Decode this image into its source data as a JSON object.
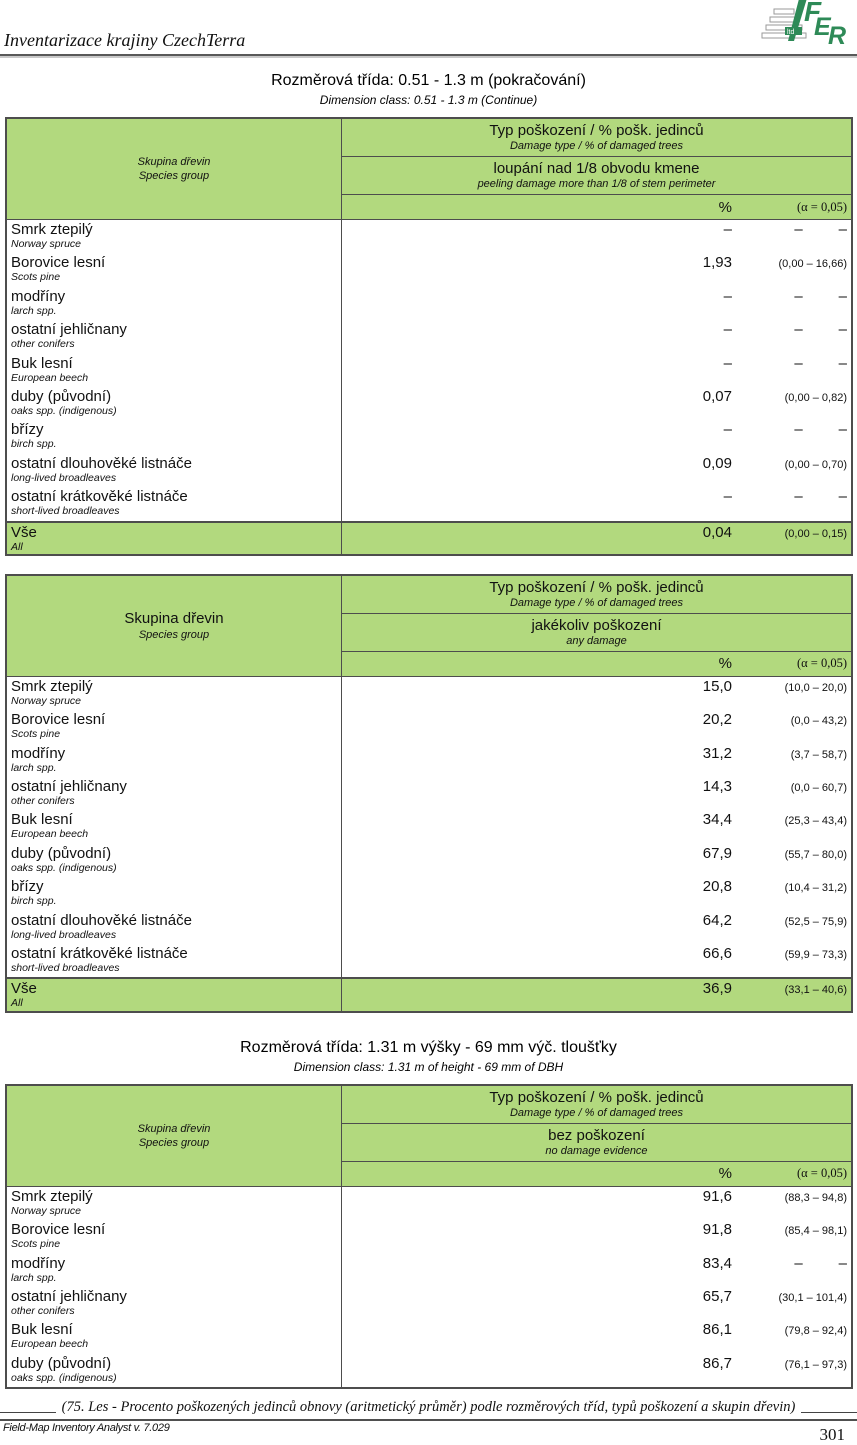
{
  "colors": {
    "table_green": "#b2d97e",
    "logo_green": "#2e8a57",
    "border_dark": "#4d4d4d"
  },
  "page": {
    "header_title": "Inventarizace krajiny CzechTerra",
    "logo": {
      "letters": {
        "f": "F",
        "e": "E",
        "r": "R"
      },
      "ltd": "ltd"
    },
    "caption": "(75. Les - Procento poškozených jedinců obnovy (aritmetický průměr) podle rozměrových tříd, typů poškození a skupin dřevin)",
    "footer_app": "Field-Map Inventory Analyst v. 7.029",
    "page_number": "301"
  },
  "sections": [
    {
      "title": "Rozměrová třída: 0.51 - 1.3 m (pokračování)",
      "subtitle": "Dimension class: 0.51 - 1.3 m (Continue)",
      "table": {
        "species_large": false,
        "species": {
          "cs": "Skupina dřevin",
          "en": "Species group"
        },
        "damage_header": {
          "cs": "Typ poškození / % pošk. jedinců",
          "en": "Damage type / % of damaged trees"
        },
        "damage_type": {
          "cs": "loupání nad 1/8 obvodu kmene",
          "en": "peeling damage more than 1/8 of stem perimeter"
        },
        "unit": "%",
        "alpha": "(α = 0,05)",
        "rows": [
          {
            "cs": "Smrk ztepilý",
            "en": "Norway spruce",
            "pct": "–",
            "ci": null
          },
          {
            "cs": "Borovice lesní",
            "en": "Scots pine",
            "pct": "1,93",
            "ci": "(0,00 – 16,66)"
          },
          {
            "cs": "modříny",
            "en": "larch spp.",
            "pct": "–",
            "ci": null
          },
          {
            "cs": "ostatní jehličnany",
            "en": "other conifers",
            "pct": "–",
            "ci": null
          },
          {
            "cs": "Buk lesní",
            "en": "European beech",
            "pct": "–",
            "ci": null
          },
          {
            "cs": "duby (původní)",
            "en": "oaks spp. (indigenous)",
            "pct": "0,07",
            "ci": "(0,00 – 0,82)"
          },
          {
            "cs": "břízy",
            "en": "birch spp.",
            "pct": "–",
            "ci": null
          },
          {
            "cs": "ostatní dlouhověké listnáče",
            "en": "long-lived broadleaves",
            "pct": "0,09",
            "ci": "(0,00 – 0,70)"
          },
          {
            "cs": "ostatní krátkověké listnáče",
            "en": "short-lived broadleaves",
            "pct": "–",
            "ci": null
          },
          {
            "cs": "Vše",
            "en": "All",
            "pct": "0,04",
            "ci": "(0,00 – 0,15)",
            "total": true
          }
        ]
      }
    },
    {
      "title": null,
      "subtitle": null,
      "table": {
        "species_large": true,
        "species": {
          "cs": "Skupina dřevin",
          "en": "Species group"
        },
        "damage_header": {
          "cs": "Typ poškození / % pošk. jedinců",
          "en": "Damage type / % of damaged trees"
        },
        "damage_type": {
          "cs": "jakékoliv poškození",
          "en": "any damage"
        },
        "unit": "%",
        "alpha": "(α = 0,05)",
        "rows": [
          {
            "cs": "Smrk ztepilý",
            "en": "Norway spruce",
            "pct": "15,0",
            "ci": "(10,0 – 20,0)"
          },
          {
            "cs": "Borovice lesní",
            "en": "Scots pine",
            "pct": "20,2",
            "ci": "(0,0 – 43,2)"
          },
          {
            "cs": "modříny",
            "en": "larch spp.",
            "pct": "31,2",
            "ci": "(3,7 – 58,7)"
          },
          {
            "cs": "ostatní jehličnany",
            "en": "other conifers",
            "pct": "14,3",
            "ci": "(0,0 – 60,7)"
          },
          {
            "cs": "Buk lesní",
            "en": "European beech",
            "pct": "34,4",
            "ci": "(25,3 – 43,4)"
          },
          {
            "cs": "duby (původní)",
            "en": "oaks spp. (indigenous)",
            "pct": "67,9",
            "ci": "(55,7 – 80,0)"
          },
          {
            "cs": "břízy",
            "en": "birch spp.",
            "pct": "20,8",
            "ci": "(10,4 – 31,2)"
          },
          {
            "cs": "ostatní dlouhověké listnáče",
            "en": "long-lived broadleaves",
            "pct": "64,2",
            "ci": "(52,5 – 75,9)"
          },
          {
            "cs": "ostatní krátkověké listnáče",
            "en": "short-lived broadleaves",
            "pct": "66,6",
            "ci": "(59,9 – 73,3)"
          },
          {
            "cs": "Vše",
            "en": "All",
            "pct": "36,9",
            "ci": "(33,1 – 40,6)",
            "total": true
          }
        ]
      }
    },
    {
      "title": "Rozměrová třída: 1.31 m výšky - 69 mm výč. tloušťky",
      "subtitle": "Dimension class: 1.31 m of height - 69 mm of DBH",
      "table": {
        "species_large": false,
        "species": {
          "cs": "Skupina dřevin",
          "en": "Species group"
        },
        "damage_header": {
          "cs": "Typ poškození / % pošk. jedinců",
          "en": "Damage type / % of damaged trees"
        },
        "damage_type": {
          "cs": "bez poškození",
          "en": "no damage evidence"
        },
        "unit": "%",
        "alpha": "(α = 0,05)",
        "rows": [
          {
            "cs": "Smrk ztepilý",
            "en": "Norway spruce",
            "pct": "91,6",
            "ci": "(88,3 – 94,8)"
          },
          {
            "cs": "Borovice lesní",
            "en": "Scots pine",
            "pct": "91,8",
            "ci": "(85,4 – 98,1)"
          },
          {
            "cs": "modříny",
            "en": "larch spp.",
            "pct": "83,4",
            "ci": null
          },
          {
            "cs": "ostatní jehličnany",
            "en": "other conifers",
            "pct": "65,7",
            "ci": "(30,1 – 101,4)"
          },
          {
            "cs": "Buk lesní",
            "en": "European beech",
            "pct": "86,1",
            "ci": "(79,8 – 92,4)"
          },
          {
            "cs": "duby (původní)",
            "en": "oaks spp. (indigenous)",
            "pct": "86,7",
            "ci": "(76,1 – 97,3)"
          }
        ]
      }
    }
  ]
}
